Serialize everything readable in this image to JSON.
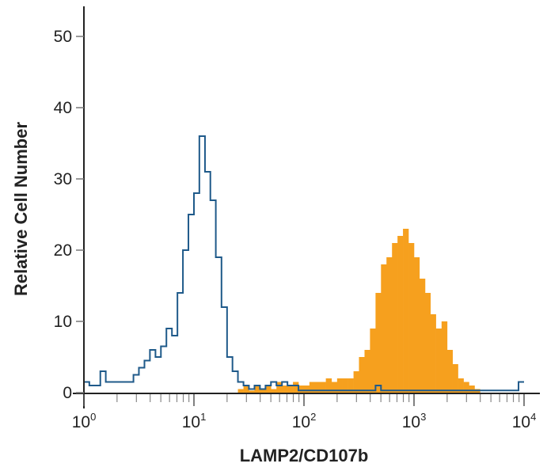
{
  "chart_data": {
    "type": "histogram",
    "xlabel": "LAMP2/CD107b",
    "ylabel": "Relative Cell Number",
    "x_scale": "log",
    "xlim": [
      1,
      10000
    ],
    "ylim": [
      0,
      50
    ],
    "x_ticks": [
      {
        "base": "10",
        "exp": "0",
        "value": 1
      },
      {
        "base": "10",
        "exp": "1",
        "value": 10
      },
      {
        "base": "10",
        "exp": "2",
        "value": 100
      },
      {
        "base": "10",
        "exp": "3",
        "value": 1000
      },
      {
        "base": "10",
        "exp": "4",
        "value": 10000
      }
    ],
    "y_ticks": [
      "0",
      "10",
      "20",
      "30",
      "40",
      "50"
    ],
    "y_tick_values": [
      0,
      10,
      20,
      30,
      40,
      50
    ],
    "grid": false,
    "bin_starts": [
      1,
      1.12,
      1.26,
      1.41,
      1.58,
      1.78,
      2,
      2.24,
      2.51,
      2.82,
      3.16,
      3.55,
      3.98,
      4.47,
      5.01,
      5.62,
      6.31,
      7.08,
      7.94,
      8.91,
      10,
      11.2,
      12.6,
      14.1,
      15.8,
      17.8,
      20,
      22.4,
      25.1,
      28.2,
      31.6,
      35.5,
      39.8,
      44.7,
      50.1,
      56.2,
      63.1,
      70.8,
      79.4,
      89.1,
      100,
      112,
      126,
      141,
      158,
      178,
      200,
      224,
      251,
      282,
      316,
      355,
      398,
      447,
      501,
      562,
      631,
      708,
      794,
      891,
      1000,
      1120,
      1260,
      1410,
      1580,
      1780,
      2000,
      2240,
      2510,
      2820,
      3160,
      3550,
      3980,
      4470,
      5010,
      5620,
      6310,
      7080,
      7940,
      8910
    ],
    "series": [
      {
        "style": "filled",
        "color": "#f6a01e",
        "values": [
          0,
          0,
          0,
          0,
          0,
          0,
          0,
          0,
          0,
          0,
          0,
          0,
          0,
          0,
          0,
          0,
          0,
          0,
          0,
          0,
          0,
          0,
          0,
          0,
          0,
          0,
          0,
          0,
          0.5,
          1,
          0.3,
          1,
          0.5,
          1,
          0.5,
          1.5,
          1,
          1,
          1.5,
          1,
          1,
          1.5,
          1.5,
          1.5,
          2,
          1.5,
          2,
          2,
          2,
          3,
          5,
          6,
          9,
          14,
          18,
          19,
          21,
          22,
          23,
          21,
          19,
          16,
          14,
          11,
          9,
          10,
          6,
          4,
          2,
          1.5,
          1,
          0.5,
          0,
          0,
          0,
          0,
          0,
          0,
          0,
          0
        ]
      },
      {
        "style": "outline",
        "color": "#1f5a8a",
        "values": [
          1.5,
          1,
          1,
          3,
          1.5,
          1.5,
          1.5,
          1.5,
          1.5,
          2.5,
          3.5,
          4.5,
          6,
          5,
          6.5,
          9,
          8,
          14,
          20,
          25,
          28,
          36,
          31,
          27,
          19,
          12,
          5,
          3,
          1.5,
          1,
          0.5,
          1,
          0.5,
          1,
          1.5,
          1,
          1.5,
          1,
          1,
          0.3,
          0.3,
          0.3,
          0.3,
          0.3,
          0.3,
          0.3,
          0.3,
          0.3,
          0.3,
          0.3,
          0.3,
          0.3,
          0.3,
          1,
          0.3,
          0.3,
          0.3,
          0.3,
          0.3,
          0.3,
          0.3,
          0.3,
          0.3,
          0.3,
          0.3,
          0.3,
          0.3,
          0.3,
          0.3,
          0.3,
          0.3,
          0.3,
          0.3,
          0.3,
          0.3,
          0.3,
          0.3,
          0.3,
          0.3,
          1.5
        ]
      }
    ]
  }
}
